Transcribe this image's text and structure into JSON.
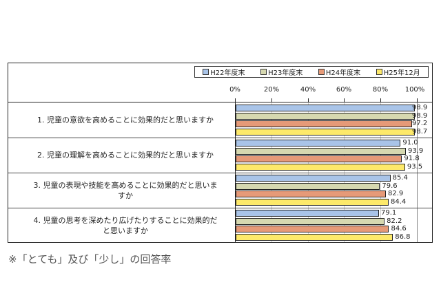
{
  "chart_data": {
    "type": "bar",
    "orientation": "horizontal",
    "title": "",
    "xlabel": "",
    "ylabel": "",
    "xlim": [
      0,
      100
    ],
    "x_ticks": [
      "0%",
      "20%",
      "40%",
      "60%",
      "80%",
      "100%"
    ],
    "grid": true,
    "legend_position": "top",
    "categories": [
      "1. 児童の意欲を高めることに効果的だと思いますか",
      "2. 児童の理解を高めることに効果的だと思いますか",
      "3. 児童の表現や技能を高めることに効果的だと思いますか",
      "4. 児童の思考を深めたり広げたりすることに効果的だと思いますか"
    ],
    "series": [
      {
        "name": "H22年度末",
        "color": "#a9c4e8",
        "values": [
          98.9,
          91.0,
          85.4,
          79.1
        ]
      },
      {
        "name": "H23年度末",
        "color": "#d6d8b0",
        "values": [
          98.9,
          93.9,
          79.6,
          82.2
        ]
      },
      {
        "name": "H24年度末",
        "color": "#e69a78",
        "values": [
          97.2,
          91.8,
          82.9,
          84.6
        ]
      },
      {
        "name": "H25年12月",
        "color": "#fde96a",
        "values": [
          98.7,
          93.5,
          84.4,
          86.8
        ]
      }
    ]
  },
  "labels": {
    "row1": "1. 児童の意欲を高めることに効果的だと思いますか",
    "row2": "2. 児童の理解を高めることに効果的だと思いますか",
    "row3a": "3. 児童の表現や技能を高めることに効果的だと思いま",
    "row3b": "すか",
    "row4a": "4. 児童の思考を深めたり広げたりすることに効果的だ",
    "row4b": "と思いますか"
  },
  "legend": [
    "H22年度末",
    "H23年度末",
    "H24年度末",
    "H25年12月"
  ],
  "ticks": [
    "0%",
    "20%",
    "40%",
    "60%",
    "80%",
    "100%"
  ],
  "values_text": [
    [
      "98.9",
      "98.9",
      "97.2",
      "98.7"
    ],
    [
      "91.0",
      "93.9",
      "91.8",
      "93.5"
    ],
    [
      "85.4",
      "79.6",
      "82.9",
      "84.4"
    ],
    [
      "79.1",
      "82.2",
      "84.6",
      "86.8"
    ]
  ],
  "note": "※「とても」及び「少し」の回答率"
}
